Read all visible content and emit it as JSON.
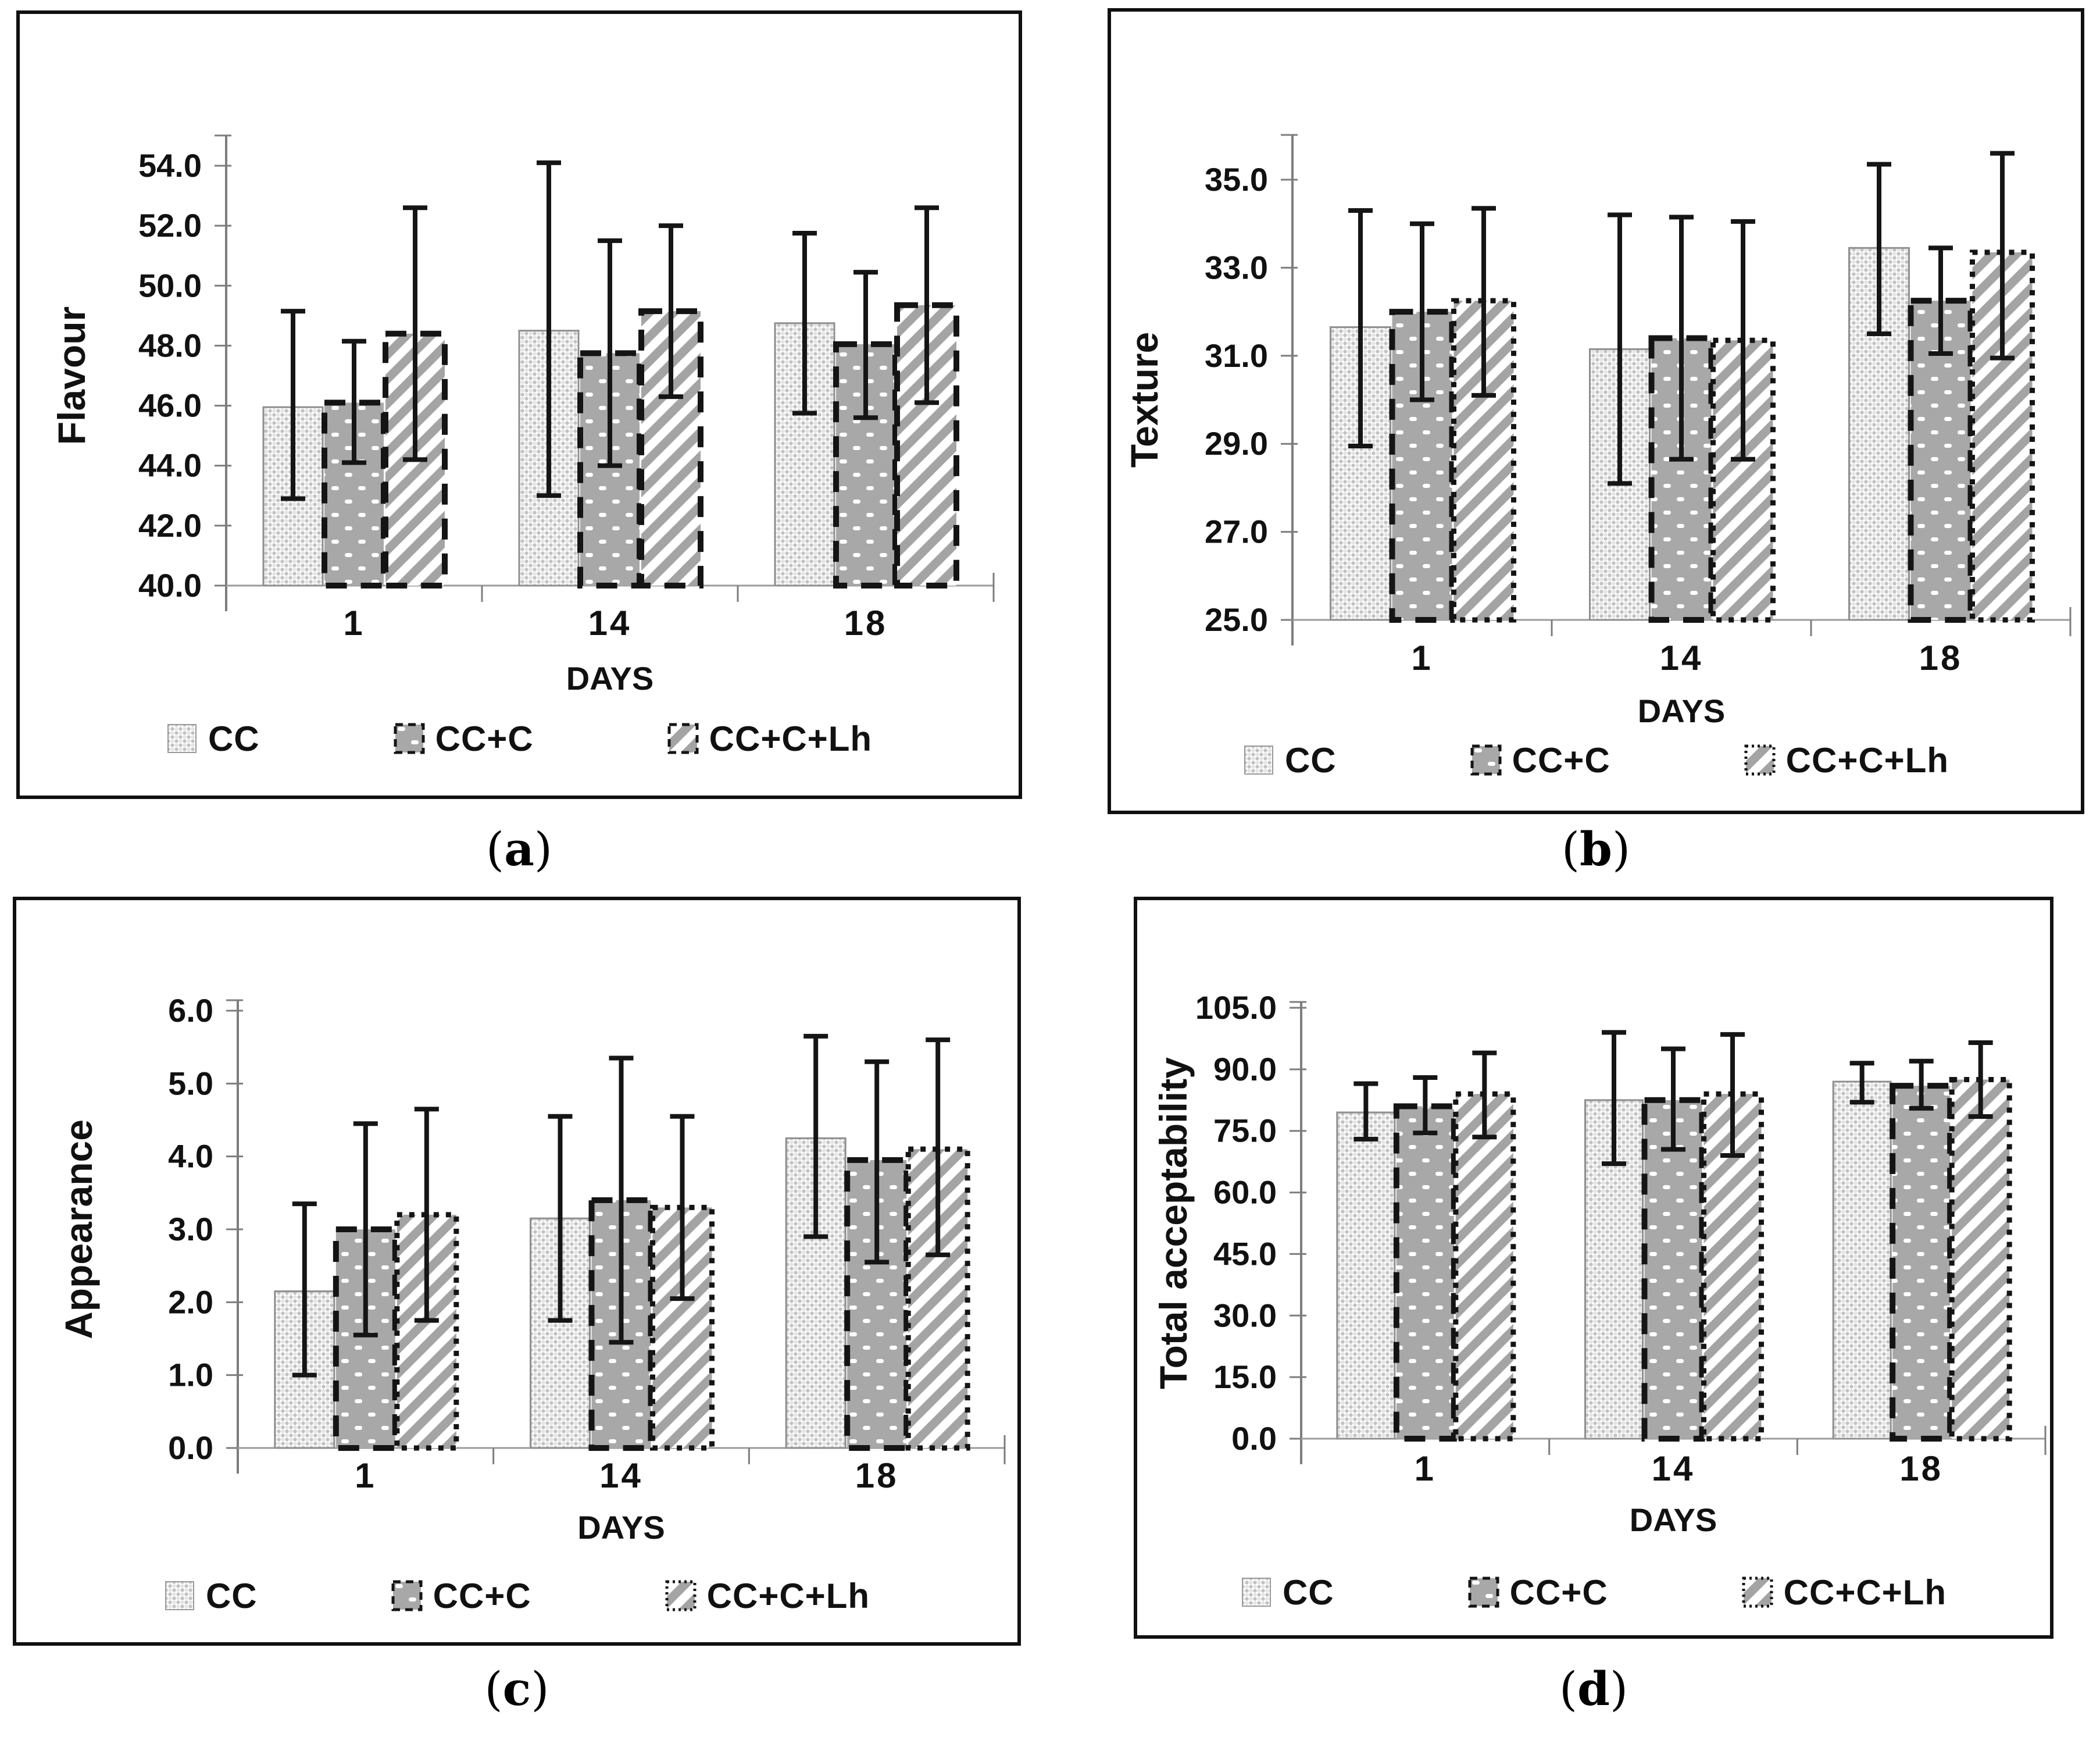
{
  "page": {
    "background": "#ffffff"
  },
  "colors": {
    "axis": "#7d7d7d",
    "baseline": "#9b9b9b",
    "text": "#111111",
    "error_bar": "#151515",
    "bar_gray": "#a8a8a8",
    "bar_light_dot": "#c2c2c2",
    "stripe_gray": "#a4a4a4",
    "panel_border": "#101010"
  },
  "icons": {
    "legend_swatch_cc": "light-halftone-pattern-swatch",
    "legend_swatch_ccc": "gray-white-dots-pattern-swatch",
    "legend_swatch_cclh": "diagonal-stripes-pattern-swatch"
  },
  "figures": [
    {
      "caption": {
        "prefix": "(",
        "letter": "a",
        "suffix": ")"
      },
      "chart_data": {
        "type": "bar",
        "title": "",
        "ylabel": "Flavour",
        "xlabel": "DAYS",
        "categories": [
          "1",
          "14",
          "18"
        ],
        "ylim": [
          40,
          54
        ],
        "ytick_step": 2,
        "yticks": [
          "40.0",
          "42.0",
          "44.0",
          "46.0",
          "48.0",
          "50.0",
          "52.0",
          "54.0"
        ],
        "grid": false,
        "legend_position": "bottom",
        "error_bars": true,
        "series": [
          {
            "name": "CC",
            "pattern": "light-halftone",
            "border": "solid-light",
            "values": [
              45.95,
              48.5,
              48.75
            ],
            "err_low": [
              42.9,
              43.0,
              45.75
            ],
            "err_high": [
              49.15,
              54.1,
              51.75
            ]
          },
          {
            "name": "CC+C",
            "pattern": "gray-white-dots",
            "border": "dashed",
            "values": [
              46.1,
              47.75,
              48.05
            ],
            "err_low": [
              44.1,
              44.0,
              45.6
            ],
            "err_high": [
              48.15,
              51.5,
              50.45
            ]
          },
          {
            "name": "CC+C+Lh",
            "pattern": "diagonal-stripes",
            "border": "dashed",
            "values": [
              48.4,
              49.15,
              49.35
            ],
            "err_low": [
              44.2,
              46.3,
              46.1
            ],
            "err_high": [
              52.6,
              52.0,
              52.6
            ]
          }
        ]
      }
    },
    {
      "caption": {
        "prefix": "(",
        "letter": "b",
        "suffix": ")"
      },
      "chart_data": {
        "type": "bar",
        "title": "",
        "ylabel": "Texture",
        "xlabel": "DAYS",
        "categories": [
          "1",
          "14",
          "18"
        ],
        "ylim": [
          25,
          35
        ],
        "ytick_step": 2,
        "yticks": [
          "25.0",
          "27.0",
          "29.0",
          "31.0",
          "33.0",
          "35.0"
        ],
        "grid": false,
        "legend_position": "bottom",
        "error_bars": true,
        "series": [
          {
            "name": "CC",
            "pattern": "light-halftone",
            "border": "solid-light",
            "values": [
              31.65,
              31.15,
              33.45
            ],
            "err_low": [
              28.95,
              28.1,
              31.5
            ],
            "err_high": [
              34.3,
              34.2,
              35.35
            ]
          },
          {
            "name": "CC+C",
            "pattern": "gray-white-dots",
            "border": "dashed",
            "values": [
              32.0,
              31.4,
              32.25
            ],
            "err_low": [
              30.0,
              28.65,
              31.05
            ],
            "err_high": [
              34.0,
              34.15,
              33.45
            ]
          },
          {
            "name": "CC+C+Lh",
            "pattern": "diagonal-stripes",
            "border": "dotted",
            "values": [
              32.25,
              31.35,
              33.35
            ],
            "err_low": [
              30.1,
              28.65,
              30.95
            ],
            "err_high": [
              34.35,
              34.05,
              35.6
            ]
          }
        ]
      }
    },
    {
      "caption": {
        "prefix": "(",
        "letter": "c",
        "suffix": ")"
      },
      "chart_data": {
        "type": "bar",
        "title": "",
        "ylabel": "Appearance",
        "xlabel": "DAYS",
        "categories": [
          "1",
          "14",
          "18"
        ],
        "ylim": [
          0,
          6
        ],
        "ytick_step": 1,
        "yticks": [
          "0.0",
          "1.0",
          "2.0",
          "3.0",
          "4.0",
          "5.0",
          "6.0"
        ],
        "grid": false,
        "legend_position": "bottom",
        "error_bars": true,
        "series": [
          {
            "name": "CC",
            "pattern": "light-halftone",
            "border": "solid-light",
            "values": [
              2.15,
              3.15,
              4.25
            ],
            "err_low": [
              1.0,
              1.75,
              2.9
            ],
            "err_high": [
              3.35,
              4.55,
              5.65
            ]
          },
          {
            "name": "CC+C",
            "pattern": "gray-white-dots",
            "border": "dashed",
            "values": [
              3.0,
              3.4,
              3.95
            ],
            "err_low": [
              1.55,
              1.45,
              2.55
            ],
            "err_high": [
              4.45,
              5.35,
              5.3
            ]
          },
          {
            "name": "CC+C+Lh",
            "pattern": "diagonal-stripes",
            "border": "dotted",
            "values": [
              3.2,
              3.3,
              4.1
            ],
            "err_low": [
              1.75,
              2.05,
              2.65
            ],
            "err_high": [
              4.65,
              4.55,
              5.6
            ]
          }
        ]
      }
    },
    {
      "caption": {
        "prefix": "(",
        "letter": "d",
        "suffix": ")"
      },
      "chart_data": {
        "type": "bar",
        "title": "",
        "ylabel": "Total acceptability",
        "xlabel": "DAYS",
        "categories": [
          "1",
          "14",
          "18"
        ],
        "ylim": [
          0,
          105
        ],
        "ytick_step": 15,
        "yticks": [
          "0.0",
          "15.0",
          "30.0",
          "45.0",
          "60.0",
          "75.0",
          "90.0",
          "105.0"
        ],
        "grid": false,
        "legend_position": "bottom",
        "error_bars": true,
        "series": [
          {
            "name": "CC",
            "pattern": "light-halftone",
            "border": "solid-light",
            "values": [
              79.5,
              82.5,
              87.0
            ],
            "err_low": [
              73.0,
              67.0,
              82.0
            ],
            "err_high": [
              86.5,
              99.0,
              91.5
            ]
          },
          {
            "name": "CC+C",
            "pattern": "gray-white-dots",
            "border": "dashed",
            "values": [
              81.0,
              82.5,
              86.0
            ],
            "err_low": [
              74.5,
              70.5,
              80.5
            ],
            "err_high": [
              88.0,
              95.0,
              92.0
            ]
          },
          {
            "name": "CC+C+Lh",
            "pattern": "diagonal-stripes",
            "border": "dotted",
            "values": [
              84.0,
              84.0,
              87.5
            ],
            "err_low": [
              73.5,
              69.0,
              78.5
            ],
            "err_high": [
              94.0,
              98.5,
              96.5
            ]
          }
        ]
      }
    }
  ]
}
